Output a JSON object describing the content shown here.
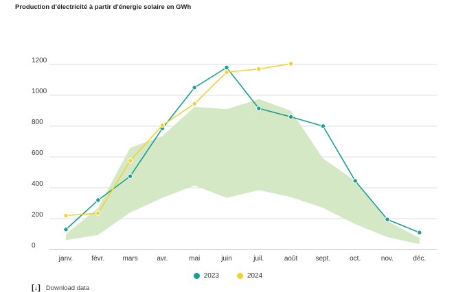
{
  "page_title": "Production d'électricité à partir d'énergie solaire en GWh",
  "legend": {
    "series_2023": "2023",
    "series_2024": "2024"
  },
  "download_label": "Download data",
  "colors": {
    "series_2023": "#1a9e8f",
    "series_2024": "#f2d22e",
    "range_band": "#d5e8c5",
    "grid": "#dddddd"
  },
  "chart_data": {
    "type": "line",
    "title": "Production d'électricité à partir d'énergie solaire en GWh",
    "xlabel": "",
    "ylabel": "",
    "categories": [
      "janv.",
      "févr.",
      "mars",
      "avr.",
      "mai",
      "juin",
      "juil.",
      "août",
      "sept.",
      "oct.",
      "nov.",
      "déc."
    ],
    "ylim": [
      0,
      1200
    ],
    "yticks": [
      0,
      200,
      400,
      600,
      800,
      1000,
      1200
    ],
    "grid": true,
    "legend_position": "bottom",
    "series": [
      {
        "name": "2023",
        "values": [
          130,
          320,
          475,
          785,
          1050,
          1180,
          915,
          860,
          800,
          445,
          195,
          110
        ]
      },
      {
        "name": "2024",
        "values": [
          220,
          235,
          575,
          805,
          945,
          1150,
          1170,
          1205,
          null,
          null,
          null,
          null
        ]
      }
    ],
    "range_band": {
      "name": "historical range",
      "lower": [
        60,
        95,
        240,
        335,
        415,
        335,
        385,
        340,
        270,
        165,
        80,
        35
      ],
      "upper": [
        100,
        270,
        660,
        735,
        925,
        910,
        975,
        900,
        590,
        445,
        185,
        75
      ]
    }
  }
}
